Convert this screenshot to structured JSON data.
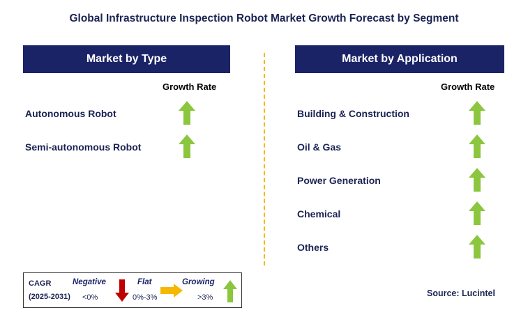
{
  "title": "Global Infrastructure Inspection Robot Market Growth Forecast by Segment",
  "colors": {
    "header_bg": "#1b2367",
    "growing": "#8cc63f",
    "negative": "#c00000",
    "flat": "#f5b800",
    "divider": "#f5b800"
  },
  "type_panel": {
    "header": "Market by Type",
    "growth_rate_label": "Growth Rate",
    "items": [
      {
        "label": "Autonomous Robot",
        "trend": "growing"
      },
      {
        "label": "Semi-autonomous Robot",
        "trend": "growing"
      }
    ]
  },
  "application_panel": {
    "header": "Market by Application",
    "growth_rate_label": "Growth Rate",
    "items": [
      {
        "label": "Building & Construction",
        "trend": "growing"
      },
      {
        "label": "Oil & Gas",
        "trend": "growing"
      },
      {
        "label": "Power Generation",
        "trend": "growing"
      },
      {
        "label": "Chemical",
        "trend": "growing"
      },
      {
        "label": "Others",
        "trend": "growing"
      }
    ]
  },
  "legend": {
    "cagr_label": "CAGR",
    "period": "(2025-2031)",
    "negative_label": "Negative",
    "negative_value": "<0%",
    "flat_label": "Flat",
    "flat_value": "0%-3%",
    "growing_label": "Growing",
    "growing_value": ">3%"
  },
  "source": "Source: Lucintel"
}
